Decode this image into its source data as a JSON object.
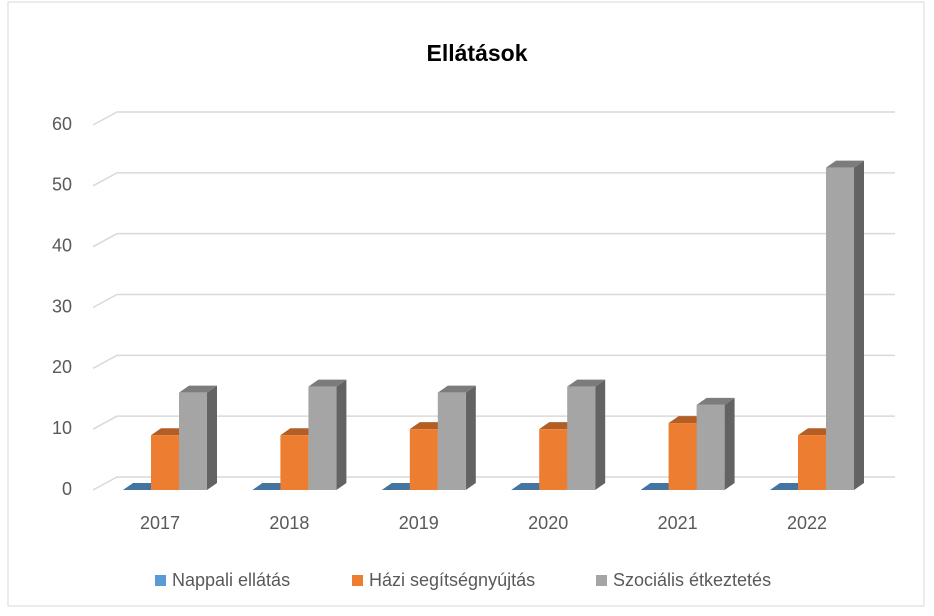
{
  "chart_data": {
    "type": "bar3d",
    "title": "Ellátások",
    "categories": [
      "2017",
      "2018",
      "2019",
      "2020",
      "2021",
      "2022"
    ],
    "series": [
      {
        "name": "Nappali ellátás",
        "color": "#5b9bd5",
        "values": [
          0,
          0,
          0,
          0,
          0,
          0
        ]
      },
      {
        "name": "Házi segítségnyújtás",
        "color": "#ed7d31",
        "values": [
          9,
          9,
          10,
          10,
          11,
          9
        ]
      },
      {
        "name": "Szociális étkeztetés",
        "color": "#a5a5a5",
        "values": [
          16,
          17,
          16,
          17,
          14,
          53
        ]
      }
    ],
    "ylim": [
      0,
      60
    ],
    "yticks": [
      0,
      10,
      20,
      30,
      40,
      50,
      60
    ],
    "grid": true,
    "legend": "bottom"
  }
}
